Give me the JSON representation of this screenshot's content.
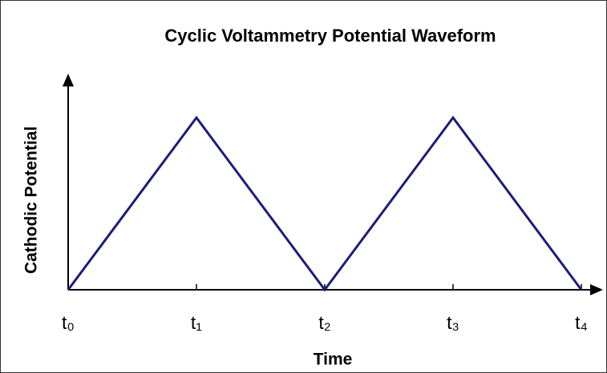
{
  "chart_data": {
    "type": "line",
    "title": "Cyclic Voltammetry Potential Waveform",
    "x_label": "Time",
    "y_label": "Cathodic Potential",
    "categories": [
      "t₀",
      "t₁",
      "t₂",
      "t₃",
      "t₄"
    ],
    "values": [
      0,
      1,
      0,
      1,
      0
    ],
    "color": "#1c1c78",
    "ylim": [
      0,
      1.2
    ]
  }
}
